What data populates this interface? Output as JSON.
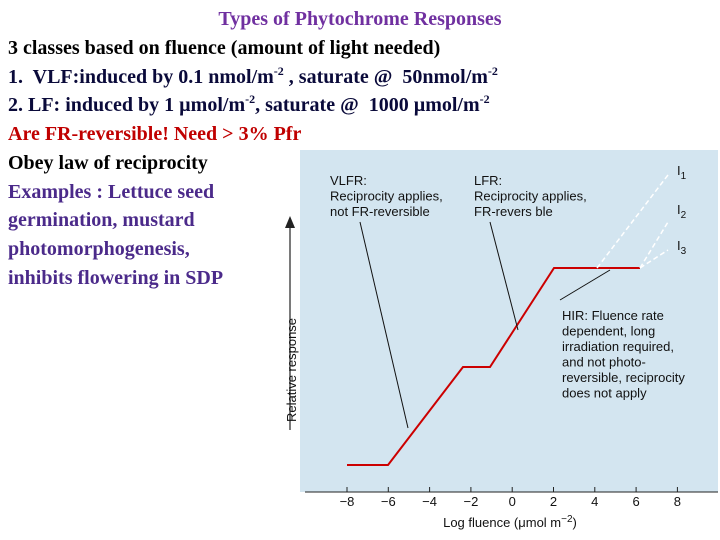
{
  "slide": {
    "title": "Types of Phytochrome Responses",
    "lines": [
      {
        "color": "#000000",
        "runs": [
          {
            "text": "3 classes based on fluence (amount of light needed)"
          }
        ]
      },
      {
        "color": "#0a0a3a",
        "runs": [
          {
            "text": "1.  VLF:induced by 0.1 nmol/m"
          },
          {
            "text": "-2",
            "sup": true
          },
          {
            "text": " , saturate @  50nmol/m"
          },
          {
            "text": "-2",
            "sup": true
          }
        ]
      },
      {
        "color": "#0a0a3a",
        "runs": [
          {
            "text": "2. LF: induced by 1 µmol/m"
          },
          {
            "text": "-2",
            "sup": true
          },
          {
            "text": ", saturate @  1000 µmol/m"
          },
          {
            "text": "-2",
            "sup": true
          }
        ]
      },
      {
        "color": "#c00000",
        "runs": [
          {
            "text": "Are FR-reversible! Need > 3% Pfr"
          }
        ]
      },
      {
        "color": "#000000",
        "runs": [
          {
            "text": "Obey law of reciprocity"
          }
        ]
      },
      {
        "color": "#4b2a8a",
        "runs": [
          {
            "text": "Examples : Lettuce seed"
          }
        ]
      },
      {
        "color": "#4b2a8a",
        "runs": [
          {
            "text": "germination, mustard"
          }
        ]
      },
      {
        "color": "#4b2a8a",
        "runs": [
          {
            "text": "photomorphogenesis,"
          }
        ]
      },
      {
        "color": "#4b2a8a",
        "runs": [
          {
            "text": "inhibits flowering in SDP"
          }
        ]
      }
    ]
  },
  "figure": {
    "y_label": "Relative response",
    "x_label": {
      "text": "Log fluence (μmol m",
      "sup": "−2",
      "end": ")"
    },
    "xticks": [
      "−8",
      "−6",
      "−4",
      "−2",
      "0",
      "2",
      "4",
      "6",
      "8"
    ],
    "vlfr": [
      "VLFR:",
      "Reciprocity applies,",
      "not FR-reversible"
    ],
    "lfr": [
      "LFR:",
      "Reciprocity applies,",
      "FR-revers ble"
    ],
    "hir": [
      "HIR: Fluence rate",
      "dependent, long",
      "irradiation required,",
      "and not photo-",
      "reversible, reciprocity",
      "does not apply"
    ],
    "irradiances": [
      {
        "text": "I",
        "sub": "1"
      },
      {
        "text": "I",
        "sub": "2"
      },
      {
        "text": "I",
        "sub": "3"
      }
    ]
  }
}
